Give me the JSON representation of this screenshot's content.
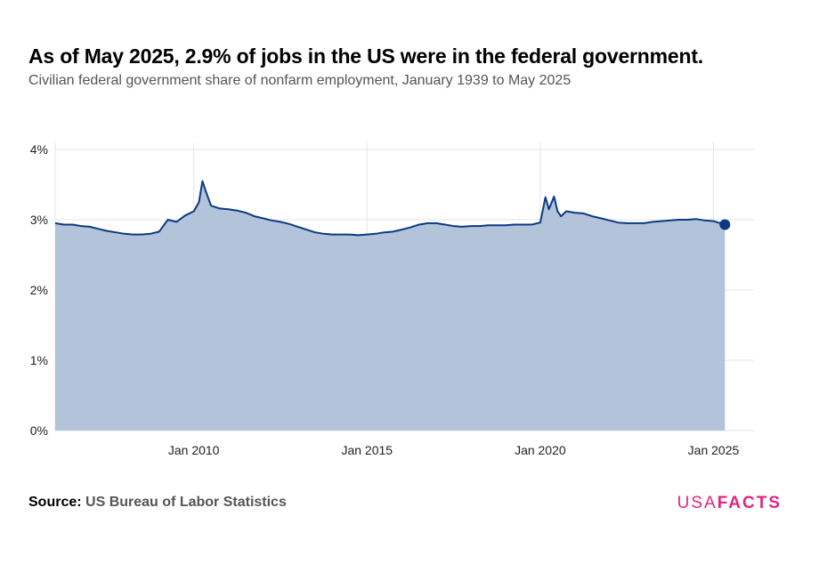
{
  "header": {
    "title": "As of May 2025, 2.9% of jobs in the US were in the federal government.",
    "subtitle": "Civilian federal government share of nonfarm employment, January 1939 to May 2025"
  },
  "footer": {
    "source_lead": "Source:",
    "source_text": "US Bureau of Labor Statistics",
    "brand_light": "USA",
    "brand_bold": "FACTS",
    "brand_color": "#e5247f"
  },
  "colors": {
    "line": "#0b3a82",
    "area": "#b3c3da",
    "grid": "#e6e6e6"
  },
  "chart_data": {
    "type": "area",
    "title": "As of May 2025, 2.9% of jobs in the US were in the federal government.",
    "subtitle": "Civilian federal government share of nonfarm employment, January 1939 to May 2025",
    "xlabel": "",
    "ylabel": "",
    "x_range": [
      2006.0,
      2026.17
    ],
    "ylim": [
      0,
      4
    ],
    "y_ticks": [
      0,
      1,
      2,
      3,
      4
    ],
    "y_tick_labels": [
      "0%",
      "1%",
      "2%",
      "3%",
      "4%"
    ],
    "x_ticks": [
      2010,
      2015,
      2020,
      2025
    ],
    "x_tick_labels": [
      "Jan 2010",
      "Jan 2015",
      "Jan 2020",
      "Jan 2025"
    ],
    "grid": true,
    "end_marker": {
      "x": 2025.33,
      "y": 2.93
    },
    "series": [
      {
        "x": [
          2006.0,
          2006.25,
          2006.5,
          2006.75,
          2007.0,
          2007.25,
          2007.5,
          2007.75,
          2008.0,
          2008.25,
          2008.5,
          2008.75,
          2009.0,
          2009.25,
          2009.5,
          2009.75,
          2010.0,
          2010.15,
          2010.25,
          2010.35,
          2010.5,
          2010.75,
          2011.0,
          2011.25,
          2011.5,
          2011.75,
          2012.0,
          2012.25,
          2012.5,
          2012.75,
          2013.0,
          2013.25,
          2013.5,
          2013.75,
          2014.0,
          2014.25,
          2014.5,
          2014.75,
          2015.0,
          2015.25,
          2015.5,
          2015.75,
          2016.0,
          2016.25,
          2016.5,
          2016.75,
          2017.0,
          2017.25,
          2017.5,
          2017.75,
          2018.0,
          2018.25,
          2018.5,
          2018.75,
          2019.0,
          2019.25,
          2019.5,
          2019.75,
          2020.0,
          2020.15,
          2020.25,
          2020.4,
          2020.5,
          2020.6,
          2020.75,
          2021.0,
          2021.25,
          2021.5,
          2021.75,
          2022.0,
          2022.25,
          2022.5,
          2022.75,
          2023.0,
          2023.25,
          2023.5,
          2023.75,
          2024.0,
          2024.25,
          2024.5,
          2024.75,
          2025.0,
          2025.33
        ],
        "values": [
          2.95,
          2.93,
          2.93,
          2.91,
          2.9,
          2.87,
          2.84,
          2.82,
          2.8,
          2.79,
          2.79,
          2.8,
          2.83,
          3.0,
          2.97,
          3.06,
          3.12,
          3.25,
          3.55,
          3.4,
          3.2,
          3.16,
          3.15,
          3.13,
          3.1,
          3.05,
          3.02,
          2.99,
          2.97,
          2.94,
          2.9,
          2.86,
          2.82,
          2.8,
          2.79,
          2.79,
          2.79,
          2.78,
          2.79,
          2.8,
          2.82,
          2.83,
          2.86,
          2.89,
          2.93,
          2.95,
          2.95,
          2.93,
          2.91,
          2.9,
          2.91,
          2.91,
          2.92,
          2.92,
          2.92,
          2.93,
          2.93,
          2.93,
          2.96,
          3.32,
          3.15,
          3.33,
          3.12,
          3.05,
          3.12,
          3.1,
          3.09,
          3.05,
          3.02,
          2.99,
          2.96,
          2.95,
          2.95,
          2.95,
          2.97,
          2.98,
          2.99,
          3.0,
          3.0,
          3.01,
          2.99,
          2.98,
          2.93
        ]
      }
    ]
  }
}
